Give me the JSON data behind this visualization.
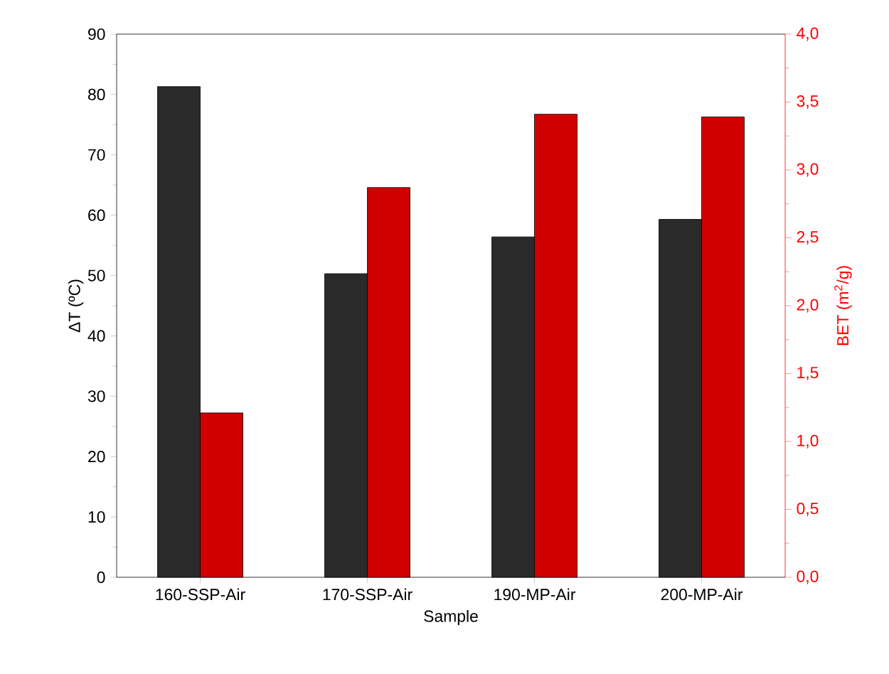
{
  "chart_data": {
    "type": "bar",
    "xlabel": "Sample",
    "ylabel": "ΔT (ºC)",
    "y2label": "BET (m$^{2}$/g)",
    "categories": [
      "160-SSP-Air",
      "170-SSP-Air",
      "190-MP-Air",
      "200-MP-Air"
    ],
    "series": [
      {
        "color": "#2a2a2a",
        "values": [
          81.3,
          50.3,
          56.4,
          59.3
        ]
      },
      {
        "color": "#d00000",
        "axis": "y2",
        "values": [
          1.21,
          2.87,
          3.41,
          3.39
        ]
      }
    ],
    "ylim": [
      0,
      90
    ],
    "yticks": [
      0,
      10,
      20,
      30,
      40,
      50,
      60,
      70,
      80,
      90
    ],
    "y2lim": [
      0,
      4
    ],
    "y2ticks": [
      {
        "value": 0,
        "label": "0,0"
      },
      {
        "value": 0.5,
        "label": "0,5"
      },
      {
        "value": 1,
        "label": "1,0"
      },
      {
        "value": 1.5,
        "label": "1,5"
      },
      {
        "value": 2,
        "label": "2,0"
      },
      {
        "value": 2.5,
        "label": "2,5"
      },
      {
        "value": 3,
        "label": "3,0"
      },
      {
        "value": 3.5,
        "label": "3,5"
      },
      {
        "value": 4,
        "label": "4,0"
      }
    ],
    "grid": false
  }
}
